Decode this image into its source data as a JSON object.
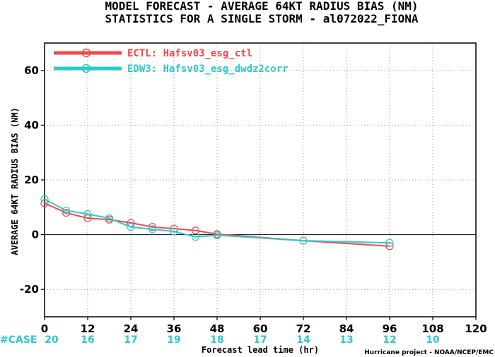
{
  "chart_data": {
    "type": "line",
    "title_line1": "MODEL FORECAST - AVERAGE 64KT RADIUS BIAS (NM)",
    "title_line2": "STATISTICS FOR A SINGLE STORM - al072022_FIONA",
    "ylabel": "AVERAGE 64KT RADIUS BIAS (NM)",
    "xlabel": "Forecast lead time (hr)",
    "credit": "Hurricane project - NOAA/NCEP/EMC",
    "xlim": [
      0,
      120
    ],
    "ylim": [
      -30,
      70
    ],
    "xticks": [
      0,
      12,
      24,
      36,
      48,
      60,
      72,
      84,
      96,
      108,
      120
    ],
    "yticks": [
      -20,
      0,
      20,
      40,
      60
    ],
    "zero_line": true,
    "grid": "dotted",
    "legend_position": "top-left",
    "case_prefix": "#CASE",
    "cases": [
      {
        "x": 0,
        "n": "20"
      },
      {
        "x": 12,
        "n": "16"
      },
      {
        "x": 24,
        "n": "17"
      },
      {
        "x": 36,
        "n": "19"
      },
      {
        "x": 48,
        "n": "18"
      },
      {
        "x": 60,
        "n": "17"
      },
      {
        "x": 72,
        "n": "14"
      },
      {
        "x": 84,
        "n": "13"
      },
      {
        "x": 96,
        "n": "12"
      },
      {
        "x": 108,
        "n": "10"
      }
    ],
    "series": [
      {
        "name": "ECTL: Hafsv03_esg_ctl",
        "color": "#f04848",
        "x": [
          0,
          6,
          12,
          18,
          24,
          30,
          36,
          42,
          48,
          72,
          96
        ],
        "y": [
          11.5,
          8,
          6,
          5.5,
          4.3,
          2.8,
          2.2,
          1.5,
          0.2,
          -2.2,
          -4.2
        ]
      },
      {
        "name": "EDW3: Hafsv03_esg_dwdz2corr",
        "color": "#2ec8c8",
        "x": [
          0,
          6,
          12,
          18,
          24,
          30,
          36,
          42,
          48,
          72,
          96
        ],
        "y": [
          13,
          8.8,
          7.5,
          6,
          2.8,
          2,
          1.2,
          -0.8,
          -0.2,
          -2.2,
          -3
        ]
      }
    ]
  }
}
